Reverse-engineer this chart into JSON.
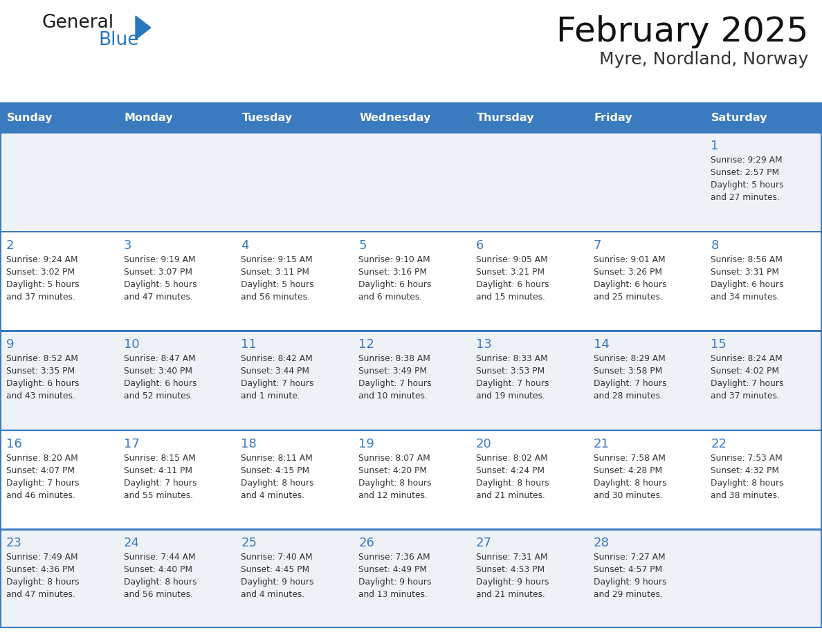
{
  "title": "February 2025",
  "subtitle": "Myre, Nordland, Norway",
  "header_bg": "#3a7abf",
  "header_text": "#ffffff",
  "cell_bg_odd": "#eef2f7",
  "cell_bg_even": "#ffffff",
  "separator_color": "#3a7abf",
  "text_color": "#333333",
  "day_num_color": "#3a7abf",
  "days_of_week": [
    "Sunday",
    "Monday",
    "Tuesday",
    "Wednesday",
    "Thursday",
    "Friday",
    "Saturday"
  ],
  "logo_general_color": "#1a1a1a",
  "logo_blue_color": "#2878c0",
  "calendar_data": [
    [
      {
        "day": null,
        "sunrise": null,
        "sunset": null,
        "daylight": null
      },
      {
        "day": null,
        "sunrise": null,
        "sunset": null,
        "daylight": null
      },
      {
        "day": null,
        "sunrise": null,
        "sunset": null,
        "daylight": null
      },
      {
        "day": null,
        "sunrise": null,
        "sunset": null,
        "daylight": null
      },
      {
        "day": null,
        "sunrise": null,
        "sunset": null,
        "daylight": null
      },
      {
        "day": null,
        "sunrise": null,
        "sunset": null,
        "daylight": null
      },
      {
        "day": 1,
        "sunrise": "9:29 AM",
        "sunset": "2:57 PM",
        "daylight": "5 hours\nand 27 minutes."
      }
    ],
    [
      {
        "day": 2,
        "sunrise": "9:24 AM",
        "sunset": "3:02 PM",
        "daylight": "5 hours\nand 37 minutes."
      },
      {
        "day": 3,
        "sunrise": "9:19 AM",
        "sunset": "3:07 PM",
        "daylight": "5 hours\nand 47 minutes."
      },
      {
        "day": 4,
        "sunrise": "9:15 AM",
        "sunset": "3:11 PM",
        "daylight": "5 hours\nand 56 minutes."
      },
      {
        "day": 5,
        "sunrise": "9:10 AM",
        "sunset": "3:16 PM",
        "daylight": "6 hours\nand 6 minutes."
      },
      {
        "day": 6,
        "sunrise": "9:05 AM",
        "sunset": "3:21 PM",
        "daylight": "6 hours\nand 15 minutes."
      },
      {
        "day": 7,
        "sunrise": "9:01 AM",
        "sunset": "3:26 PM",
        "daylight": "6 hours\nand 25 minutes."
      },
      {
        "day": 8,
        "sunrise": "8:56 AM",
        "sunset": "3:31 PM",
        "daylight": "6 hours\nand 34 minutes."
      }
    ],
    [
      {
        "day": 9,
        "sunrise": "8:52 AM",
        "sunset": "3:35 PM",
        "daylight": "6 hours\nand 43 minutes."
      },
      {
        "day": 10,
        "sunrise": "8:47 AM",
        "sunset": "3:40 PM",
        "daylight": "6 hours\nand 52 minutes."
      },
      {
        "day": 11,
        "sunrise": "8:42 AM",
        "sunset": "3:44 PM",
        "daylight": "7 hours\nand 1 minute."
      },
      {
        "day": 12,
        "sunrise": "8:38 AM",
        "sunset": "3:49 PM",
        "daylight": "7 hours\nand 10 minutes."
      },
      {
        "day": 13,
        "sunrise": "8:33 AM",
        "sunset": "3:53 PM",
        "daylight": "7 hours\nand 19 minutes."
      },
      {
        "day": 14,
        "sunrise": "8:29 AM",
        "sunset": "3:58 PM",
        "daylight": "7 hours\nand 28 minutes."
      },
      {
        "day": 15,
        "sunrise": "8:24 AM",
        "sunset": "4:02 PM",
        "daylight": "7 hours\nand 37 minutes."
      }
    ],
    [
      {
        "day": 16,
        "sunrise": "8:20 AM",
        "sunset": "4:07 PM",
        "daylight": "7 hours\nand 46 minutes."
      },
      {
        "day": 17,
        "sunrise": "8:15 AM",
        "sunset": "4:11 PM",
        "daylight": "7 hours\nand 55 minutes."
      },
      {
        "day": 18,
        "sunrise": "8:11 AM",
        "sunset": "4:15 PM",
        "daylight": "8 hours\nand 4 minutes."
      },
      {
        "day": 19,
        "sunrise": "8:07 AM",
        "sunset": "4:20 PM",
        "daylight": "8 hours\nand 12 minutes."
      },
      {
        "day": 20,
        "sunrise": "8:02 AM",
        "sunset": "4:24 PM",
        "daylight": "8 hours\nand 21 minutes."
      },
      {
        "day": 21,
        "sunrise": "7:58 AM",
        "sunset": "4:28 PM",
        "daylight": "8 hours\nand 30 minutes."
      },
      {
        "day": 22,
        "sunrise": "7:53 AM",
        "sunset": "4:32 PM",
        "daylight": "8 hours\nand 38 minutes."
      }
    ],
    [
      {
        "day": 23,
        "sunrise": "7:49 AM",
        "sunset": "4:36 PM",
        "daylight": "8 hours\nand 47 minutes."
      },
      {
        "day": 24,
        "sunrise": "7:44 AM",
        "sunset": "4:40 PM",
        "daylight": "8 hours\nand 56 minutes."
      },
      {
        "day": 25,
        "sunrise": "7:40 AM",
        "sunset": "4:45 PM",
        "daylight": "9 hours\nand 4 minutes."
      },
      {
        "day": 26,
        "sunrise": "7:36 AM",
        "sunset": "4:49 PM",
        "daylight": "9 hours\nand 13 minutes."
      },
      {
        "day": 27,
        "sunrise": "7:31 AM",
        "sunset": "4:53 PM",
        "daylight": "9 hours\nand 21 minutes."
      },
      {
        "day": 28,
        "sunrise": "7:27 AM",
        "sunset": "4:57 PM",
        "daylight": "9 hours\nand 29 minutes."
      },
      {
        "day": null,
        "sunrise": null,
        "sunset": null,
        "daylight": null
      }
    ]
  ]
}
